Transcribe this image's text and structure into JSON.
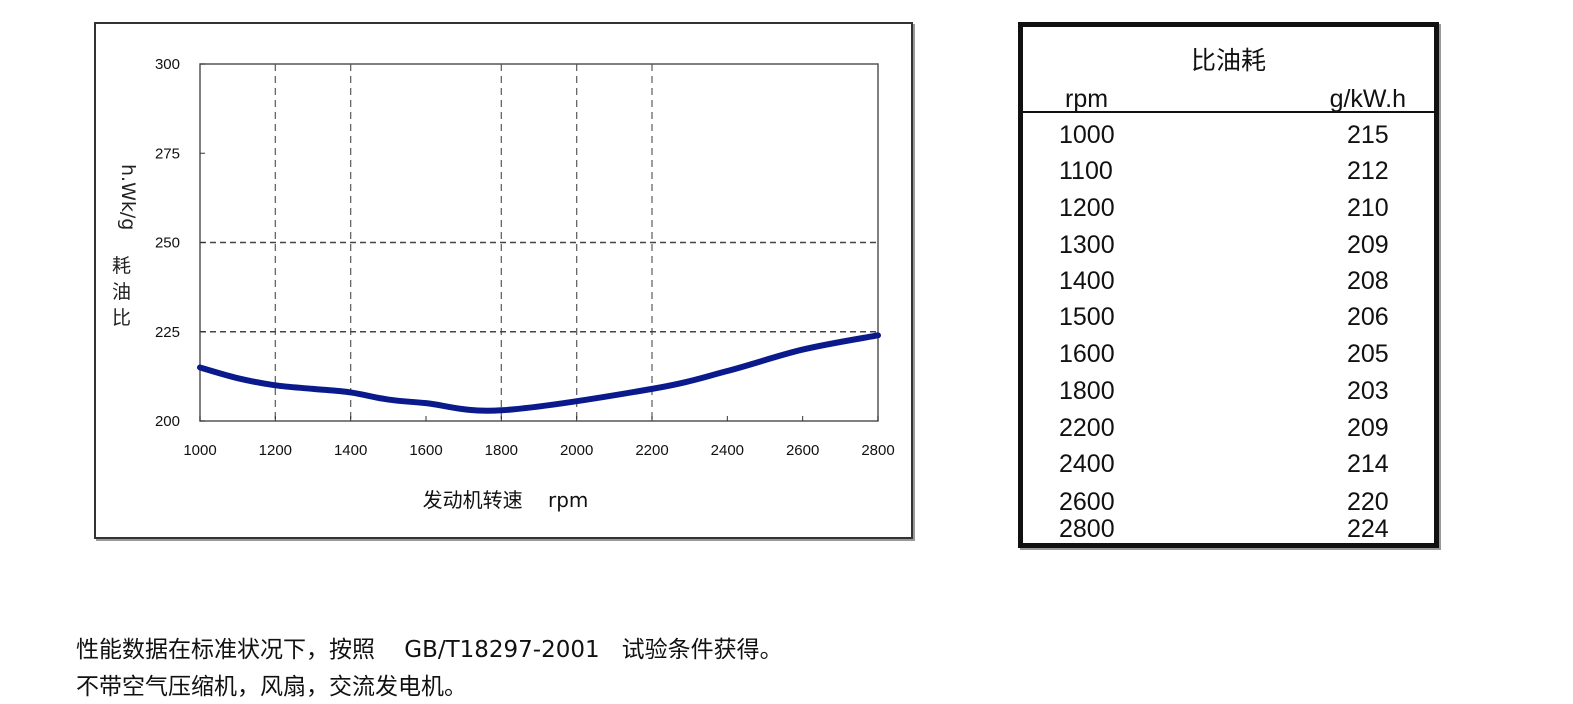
{
  "chart_data": {
    "type": "line",
    "title": "",
    "xlabel": "发动机转速    rpm",
    "ylabel": "比油耗g/kW.h",
    "x_ticks": [
      1000,
      1200,
      1400,
      1600,
      1800,
      2000,
      2200,
      2400,
      2600,
      2800
    ],
    "y_ticks": [
      200,
      225,
      250,
      275,
      300
    ],
    "xlim": [
      1000,
      2800
    ],
    "ylim": [
      200,
      300
    ],
    "grid": {
      "x_dashed_at": [
        1200,
        1400,
        1800,
        2000,
        2200
      ],
      "y_dashed_at": [
        225,
        250
      ]
    },
    "series": [
      {
        "color": "#0a1a8c",
        "x": [
          1000,
          1100,
          1200,
          1300,
          1400,
          1500,
          1600,
          1800,
          2200,
          2400,
          2600,
          2800
        ],
        "y": [
          215,
          212,
          210,
          209,
          208,
          206,
          205,
          203,
          209,
          214,
          220,
          224
        ]
      }
    ]
  },
  "table": {
    "title": "比油耗",
    "col_rpm": "rpm",
    "col_unit": "g/kW.h",
    "rows": [
      {
        "rpm": "1000",
        "value": "215"
      },
      {
        "rpm": "1100",
        "value": "212"
      },
      {
        "rpm": "1200",
        "value": "210"
      },
      {
        "rpm": "1300",
        "value": "209"
      },
      {
        "rpm": "1400",
        "value": "208"
      },
      {
        "rpm": "1500",
        "value": "206"
      },
      {
        "rpm": "1600",
        "value": "205"
      },
      {
        "rpm": "1800",
        "value": "203"
      },
      {
        "rpm": "2200",
        "value": "209"
      },
      {
        "rpm": "2400",
        "value": "214"
      },
      {
        "rpm": "2600",
        "value": "220"
      },
      {
        "rpm": "2800",
        "value": "224"
      }
    ]
  },
  "notes": {
    "line1": "性能数据在标准状况下，按照    GB/T18297-2001   试验条件获得。",
    "line2": "不带空气压缩机，风扇，交流发电机。"
  }
}
